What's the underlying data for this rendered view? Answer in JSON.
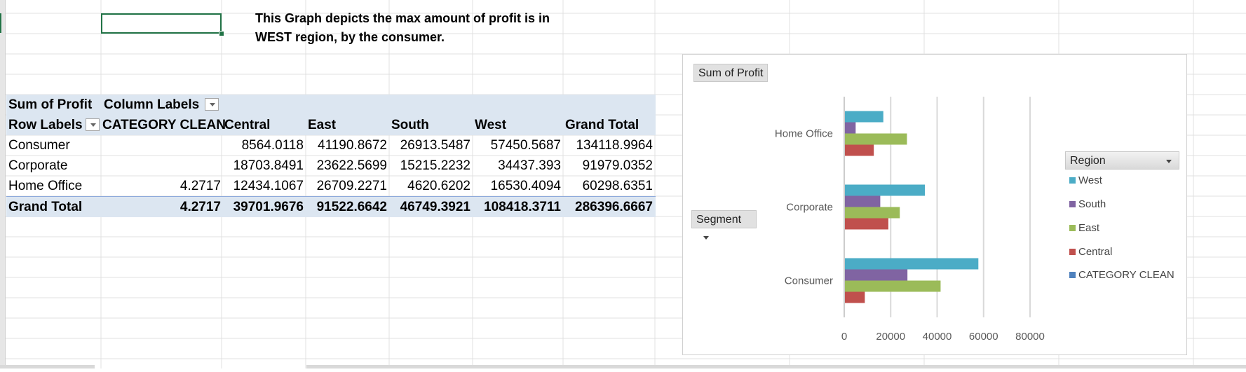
{
  "note": {
    "line1": "This Graph depicts the max amount of profit is in",
    "line2": "WEST region, by the consumer."
  },
  "pivot": {
    "header1": {
      "sum_label": "Sum of Profit",
      "col_labels": "Column Labels"
    },
    "header2": {
      "row_labels": "Row Labels",
      "columns": [
        "CATEGORY CLEAN",
        "Central",
        "East",
        "South",
        "West",
        "Grand Total"
      ]
    },
    "rows": [
      {
        "label": "Consumer",
        "values": [
          "",
          "8564.0118",
          "41190.8672",
          "26913.5487",
          "57450.5687",
          "134118.9964"
        ]
      },
      {
        "label": "Corporate",
        "values": [
          "",
          "18703.8491",
          "23622.5699",
          "15215.2232",
          "34437.393",
          "91979.0352"
        ]
      },
      {
        "label": "Home Office",
        "values": [
          "4.2717",
          "12434.1067",
          "26709.2271",
          "4620.6202",
          "16530.4094",
          "60298.6351"
        ]
      }
    ],
    "grand": {
      "label": "Grand Total",
      "values": [
        "4.2717",
        "39701.9676",
        "91522.6642",
        "46749.3921",
        "108418.3711",
        "286396.6667"
      ]
    }
  },
  "chart": {
    "values_button": "Sum of Profit",
    "axis_button": "Segment",
    "legend_title": "Region"
  },
  "chart_data": {
    "type": "bar",
    "orientation": "horizontal",
    "categories": [
      "Consumer",
      "Corporate",
      "Home Office"
    ],
    "series": [
      {
        "name": "West",
        "color": "#4bacc6",
        "values": [
          57450.5687,
          34437.393,
          16530.4094
        ]
      },
      {
        "name": "South",
        "color": "#8064a2",
        "values": [
          26913.5487,
          15215.2232,
          4620.6202
        ]
      },
      {
        "name": "East",
        "color": "#9bbb59",
        "values": [
          41190.8672,
          23622.5699,
          26709.2271
        ]
      },
      {
        "name": "Central",
        "color": "#c0504d",
        "values": [
          8564.0118,
          18703.8491,
          12434.1067
        ]
      },
      {
        "name": "CATEGORY CLEAN",
        "color": "#4f81bd",
        "values": [
          0,
          0,
          4.2717
        ]
      }
    ],
    "xlim": [
      0,
      80000
    ],
    "xticks": [
      "0",
      "20000",
      "40000",
      "60000",
      "80000"
    ],
    "grid": true,
    "legend_position": "right"
  }
}
